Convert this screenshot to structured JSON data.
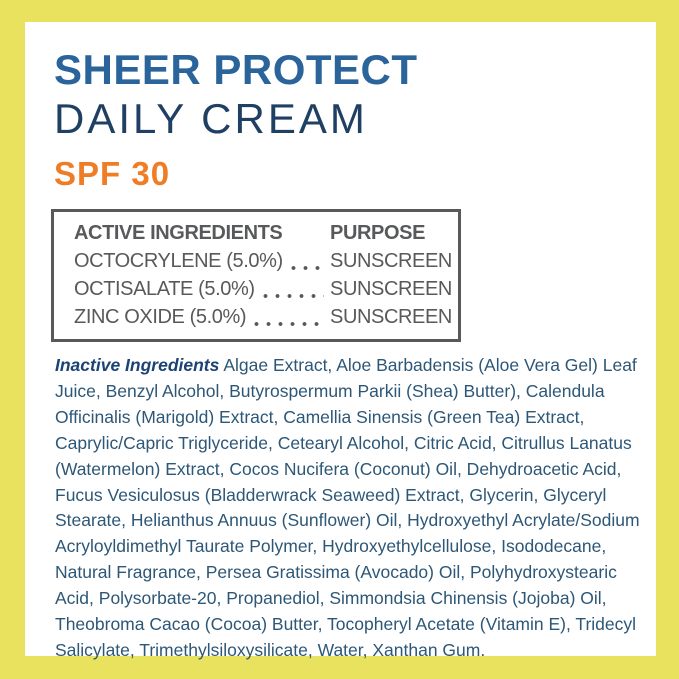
{
  "product": {
    "name": "SHEER PROTECT",
    "subtitle": "DAILY CREAM",
    "spf": "SPF 30"
  },
  "active_table": {
    "headers": {
      "ingredients": "ACTIVE INGREDIENTS",
      "purpose": "PURPOSE"
    },
    "rows": [
      {
        "ingredient": "OCTOCRYLENE (5.0%)",
        "purpose": "SUNSCREEN"
      },
      {
        "ingredient": "OCTISALATE (5.0%)",
        "purpose": "SUNSCREEN"
      },
      {
        "ingredient": "ZINC OXIDE (5.0%)",
        "purpose": "SUNSCREEN"
      }
    ]
  },
  "inactive": {
    "label": "Inactive Ingredients",
    "text": "Algae Extract, Aloe Barbadensis (Aloe Vera Gel) Leaf Juice, Benzyl Alcohol, Butyrospermum Parkii (Shea) Butter), Calendula Officinalis (Marigold) Extract, Camellia Sinensis (Green Tea) Extract, Caprylic/Capric Triglyceride, Cetearyl Alcohol, Citric Acid, Citrullus Lanatus (Watermelon) Extract, Cocos Nucifera (Coconut) Oil, Dehydroacetic Acid, Fucus Vesiculosus (Bladderwrack Seaweed) Extract, Glycerin, Glyceryl Stearate, Helianthus Annuus (Sunflower) Oil, Hydroxyethyl Acrylate/Sodium Acryloyldimethyl Taurate Polymer, Hydroxyethylcellulose, Isododecane, Natural Fragrance, Persea Gratissima (Avocado) Oil, Polyhydroxystearic Acid, Polysorbate-20, Propanediol, Simmondsia Chinensis (Jojoba) Oil, Theobroma Cacao (Cocoa) Butter, Tocopheryl Acetate (Vitamin E), Tridecyl Salicylate, Trimethylsiloxysilicate, Water, Xanthan Gum."
  },
  "colors": {
    "frame_yellow": "#e9e25f",
    "brand_blue": "#2b649a",
    "brand_navy": "#1f4062",
    "spf_orange": "#ef7d25",
    "table_gray": "#58595b",
    "body_blue": "#2d5777"
  }
}
